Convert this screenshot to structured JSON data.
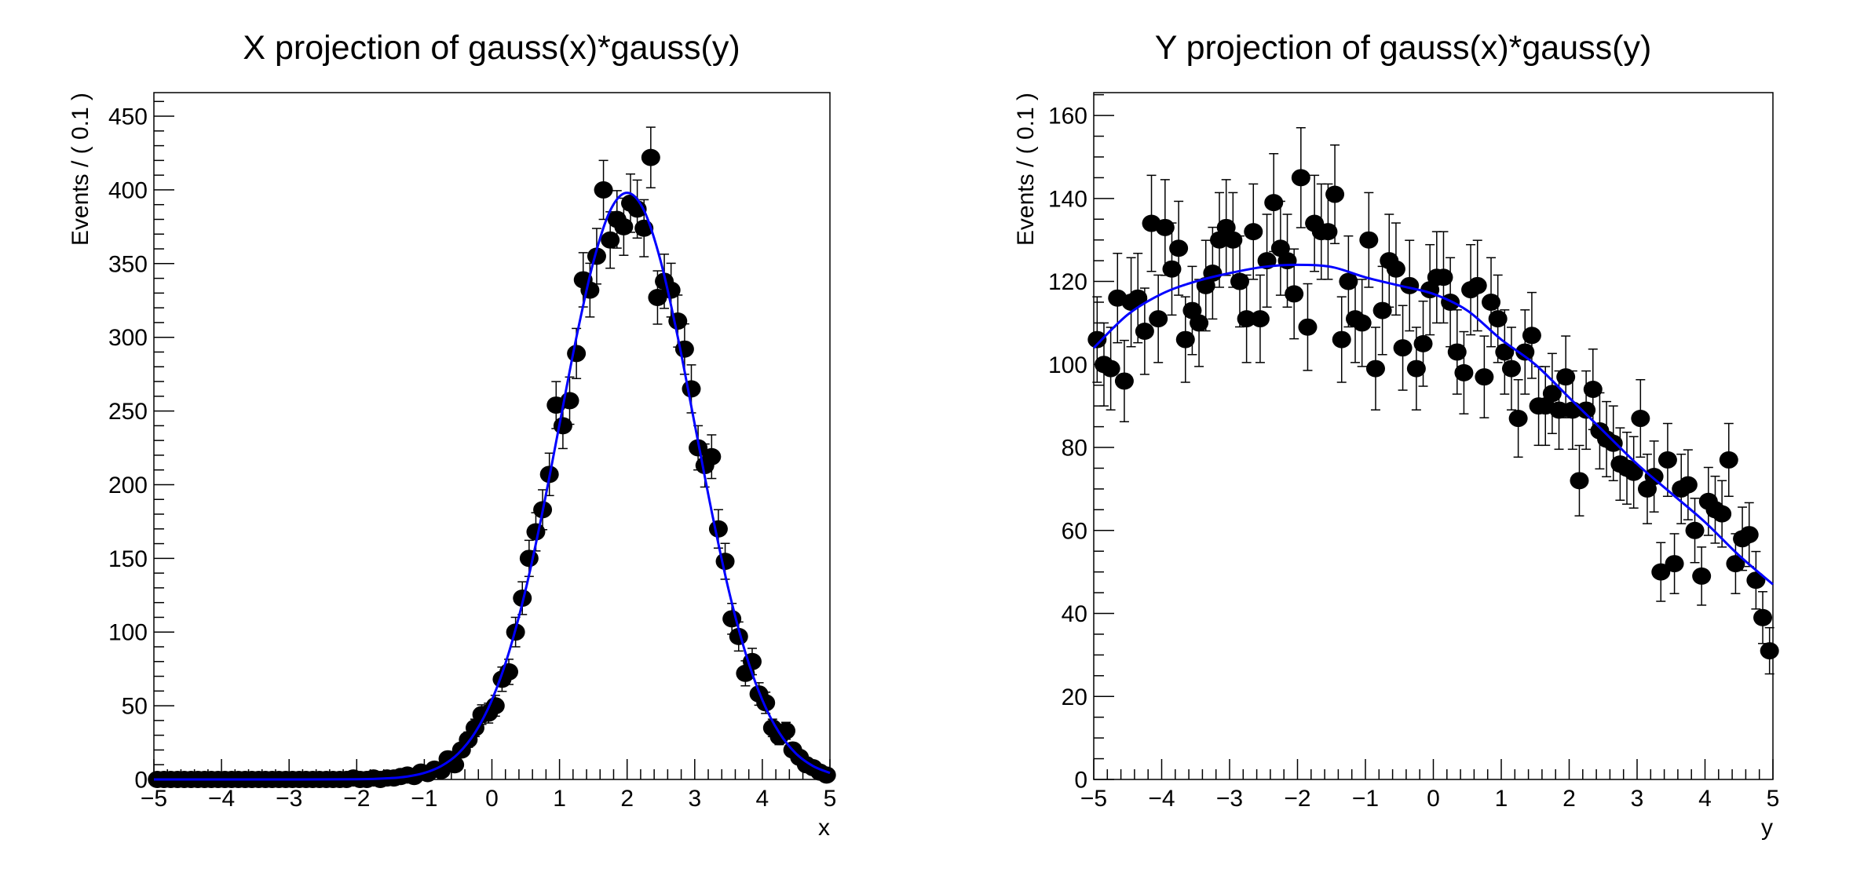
{
  "colors": {
    "points": "#000000",
    "fit": "#0000ff",
    "frame": "#000000",
    "background": "#ffffff"
  },
  "chart_data": [
    {
      "type": "scatter",
      "title": "X projection of gauss(x)*gauss(y)",
      "xlabel": "x",
      "ylabel": "Events / ( 0.1 )",
      "xlim": [
        -5,
        5
      ],
      "ylim": [
        0,
        466
      ],
      "grid": false,
      "xticks": [
        -5,
        -4,
        -3,
        -2,
        -1,
        0,
        1,
        2,
        3,
        4,
        5
      ],
      "xtick_labels": [
        "−5",
        "−4",
        "−3",
        "−2",
        "−1",
        "0",
        "1",
        "2",
        "3",
        "4",
        "5"
      ],
      "yticks": [
        0,
        50,
        100,
        150,
        200,
        250,
        300,
        350,
        400,
        450
      ],
      "ytick_labels": [
        "0",
        "50",
        "100",
        "150",
        "200",
        "250",
        "300",
        "350",
        "400",
        "450"
      ],
      "x": [
        -4.95,
        -4.85,
        -4.75,
        -4.65,
        -4.55,
        -4.45,
        -4.35,
        -4.25,
        -4.15,
        -4.05,
        -3.95,
        -3.85,
        -3.75,
        -3.65,
        -3.55,
        -3.45,
        -3.35,
        -3.25,
        -3.15,
        -3.05,
        -2.95,
        -2.85,
        -2.75,
        -2.65,
        -2.55,
        -2.45,
        -2.35,
        -2.25,
        -2.15,
        -2.05,
        -1.95,
        -1.85,
        -1.75,
        -1.65,
        -1.55,
        -1.45,
        -1.35,
        -1.25,
        -1.15,
        -1.05,
        -0.95,
        -0.85,
        -0.75,
        -0.65,
        -0.55,
        -0.45,
        -0.35,
        -0.25,
        -0.15,
        -0.05,
        0.05,
        0.15,
        0.25,
        0.35,
        0.45,
        0.55,
        0.65,
        0.75,
        0.85,
        0.95,
        1.05,
        1.15,
        1.25,
        1.35,
        1.45,
        1.55,
        1.65,
        1.75,
        1.85,
        1.95,
        2.05,
        2.15,
        2.25,
        2.35,
        2.45,
        2.55,
        2.65,
        2.75,
        2.85,
        2.95,
        3.05,
        3.15,
        3.25,
        3.35,
        3.45,
        3.55,
        3.65,
        3.75,
        3.85,
        3.95,
        4.05,
        4.15,
        4.25,
        4.35,
        4.45,
        4.55,
        4.65,
        4.75,
        4.85,
        4.95
      ],
      "values": [
        0,
        0,
        0,
        0,
        0,
        0,
        0,
        0,
        0,
        0,
        0,
        0,
        0,
        0,
        0,
        0,
        0,
        0,
        0,
        0,
        0,
        0,
        0,
        0,
        0,
        0,
        0,
        0,
        0,
        1,
        0,
        0,
        1,
        0,
        1,
        1,
        2,
        3,
        2,
        5,
        4,
        7,
        6,
        14,
        10,
        20,
        27,
        35,
        44,
        45,
        50,
        68,
        73,
        100,
        123,
        150,
        168,
        183,
        207,
        254,
        240,
        257,
        289,
        339,
        332,
        355,
        400,
        366,
        380,
        375,
        391,
        387,
        374,
        422,
        327,
        338,
        332,
        311,
        292,
        265,
        225,
        213,
        219,
        170,
        148,
        109,
        97,
        72,
        80,
        58,
        52,
        35,
        29,
        33,
        20,
        15,
        10,
        8,
        5,
        3
      ],
      "fit": {
        "x": [
          -5,
          -3,
          -2,
          -1.5,
          -1.25,
          -1,
          -0.75,
          -0.5,
          -0.25,
          0,
          0.25,
          0.5,
          0.75,
          1,
          1.25,
          1.5,
          1.75,
          2,
          2.25,
          2.5,
          2.75,
          3,
          3.25,
          3.5,
          3.75,
          4,
          4.25,
          4.5,
          4.75,
          5
        ],
        "y": [
          0,
          0,
          0.1,
          0.9,
          2.0,
          4.4,
          9.1,
          17.5,
          31.7,
          53.9,
          86,
          129,
          182,
          241,
          300,
          351,
          386,
          398,
          386,
          351,
          300,
          241,
          182,
          129,
          86,
          53.9,
          31.7,
          17.5,
          9.1,
          4.4
        ]
      }
    },
    {
      "type": "scatter",
      "title": "Y projection of gauss(x)*gauss(y)",
      "xlabel": "y",
      "ylabel": "Events / ( 0.1 )",
      "xlim": [
        -5,
        5
      ],
      "ylim": [
        0,
        165.5
      ],
      "grid": false,
      "xticks": [
        -5,
        -4,
        -3,
        -2,
        -1,
        0,
        1,
        2,
        3,
        4,
        5
      ],
      "xtick_labels": [
        "−5",
        "−4",
        "−3",
        "−2",
        "−1",
        "0",
        "1",
        "2",
        "3",
        "4",
        "5"
      ],
      "yticks": [
        0,
        20,
        40,
        60,
        80,
        100,
        120,
        140,
        160
      ],
      "ytick_labels": [
        "0",
        "20",
        "40",
        "60",
        "80",
        "100",
        "120",
        "140",
        "160"
      ],
      "x": [
        -4.95,
        -4.85,
        -4.75,
        -4.65,
        -4.55,
        -4.45,
        -4.35,
        -4.25,
        -4.15,
        -4.05,
        -3.95,
        -3.85,
        -3.75,
        -3.65,
        -3.55,
        -3.45,
        -3.35,
        -3.25,
        -3.15,
        -3.05,
        -2.95,
        -2.85,
        -2.75,
        -2.65,
        -2.55,
        -2.45,
        -2.35,
        -2.25,
        -2.15,
        -2.05,
        -1.95,
        -1.85,
        -1.75,
        -1.65,
        -1.55,
        -1.45,
        -1.35,
        -1.25,
        -1.15,
        -1.05,
        -0.95,
        -0.85,
        -0.75,
        -0.65,
        -0.55,
        -0.45,
        -0.35,
        -0.25,
        -0.15,
        -0.05,
        0.05,
        0.15,
        0.25,
        0.35,
        0.45,
        0.55,
        0.65,
        0.75,
        0.85,
        0.95,
        1.05,
        1.15,
        1.25,
        1.35,
        1.45,
        1.55,
        1.65,
        1.75,
        1.85,
        1.95,
        2.05,
        2.15,
        2.25,
        2.35,
        2.45,
        2.55,
        2.65,
        2.75,
        2.85,
        2.95,
        3.05,
        3.15,
        3.25,
        3.35,
        3.45,
        3.55,
        3.65,
        3.75,
        3.85,
        3.95,
        4.05,
        4.15,
        4.25,
        4.35,
        4.45,
        4.55,
        4.65,
        4.75,
        4.85,
        4.95
      ],
      "values": [
        106,
        100,
        99,
        116,
        96,
        115,
        116,
        108,
        134,
        111,
        133,
        123,
        128,
        106,
        113,
        110,
        119,
        122,
        130,
        133,
        130,
        120,
        111,
        132,
        111,
        125,
        139,
        128,
        125,
        117,
        145,
        109,
        134,
        132,
        132,
        141,
        106,
        120,
        111,
        110,
        130,
        99,
        113,
        125,
        123,
        104,
        119,
        99,
        105,
        118,
        121,
        121,
        115,
        103,
        98,
        118,
        119,
        97,
        115,
        111,
        103,
        99,
        87,
        103,
        107,
        90,
        90,
        93,
        89,
        97,
        89,
        72,
        89,
        94,
        84,
        82,
        81,
        76,
        75,
        74,
        87,
        70,
        73,
        50,
        77,
        52,
        70,
        71,
        60,
        49,
        67,
        65,
        64,
        77,
        52,
        58,
        59,
        48,
        39,
        31
      ],
      "fit": {
        "x": [
          -5,
          -4.5,
          -4,
          -3.5,
          -3,
          -2.5,
          -2,
          -1.5,
          -1,
          -0.5,
          0,
          0.5,
          1,
          1.5,
          2,
          2.5,
          3,
          3.5,
          4,
          4.5,
          5
        ],
        "y": [
          104,
          112,
          117,
          120,
          122,
          123.5,
          124,
          123.5,
          121,
          119,
          117,
          113,
          106,
          100,
          92,
          84,
          76,
          69,
          62,
          54,
          47
        ]
      }
    }
  ]
}
